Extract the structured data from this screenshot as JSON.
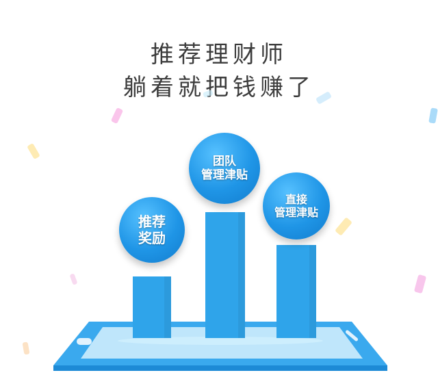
{
  "headline": {
    "line1": "推荐理财师",
    "line2": "躺着就把钱赚了"
  },
  "bubbles": {
    "left": {
      "line1": "推荐",
      "line2": "奖励"
    },
    "middle": {
      "line1": "团队",
      "line2": "管理津贴"
    },
    "right": {
      "line1": "直接",
      "line2": "管理津贴"
    }
  },
  "colors": {
    "bar": "#2fa4ea",
    "device_frame": "#3aa9ee",
    "device_screen": "#bfe6fb",
    "headline_text": "#3c3c3c"
  },
  "icons": [
    "confetti-piece",
    "phone-home-button",
    "phone-speaker"
  ]
}
